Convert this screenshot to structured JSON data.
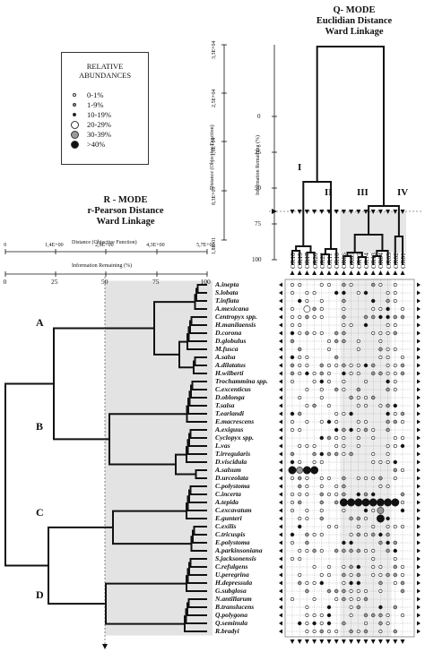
{
  "legend": {
    "title_line1": "RELATIVE",
    "title_line2": "ABUNDANCES",
    "items": [
      {
        "label": "0-1%",
        "fill": "#ffffff",
        "size": 4
      },
      {
        "label": "1-9%",
        "fill": "#999999",
        "size": 4
      },
      {
        "label": "10-19%",
        "fill": "#111111",
        "size": 4
      },
      {
        "label": "20-29%",
        "fill": "#ffffff",
        "size": 9
      },
      {
        "label": "30-39%",
        "fill": "#999999",
        "size": 9
      },
      {
        "label": ">40%",
        "fill": "#111111",
        "size": 9
      }
    ]
  },
  "qmode": {
    "title": "Q- MODE",
    "subtitle1": "Euclidian Distance",
    "subtitle2": "Ward Linkage",
    "distance_axis_label": "Distance (Objective Function)",
    "distance_ticks": [
      "1,8E-01",
      "8,3E+03",
      "1,6E+04",
      "2,5E+04",
      "3,3E+04"
    ],
    "info_axis_label": "Information Remaining (%)",
    "info_ticks": [
      "100",
      "75",
      "50",
      "25",
      "0"
    ],
    "groups": [
      "I",
      "II",
      "III",
      "IV"
    ],
    "stations": [
      "OR18",
      "OR19",
      "OR17",
      "OR20",
      "OR22",
      "OR11",
      "OR10",
      "OR06",
      "OR05",
      "OR15",
      "OR14",
      "OR13",
      "OR04",
      "OR03",
      "OR02",
      "OR01"
    ]
  },
  "rmode": {
    "title": "R - MODE",
    "subtitle1": "r-Pearson Distance",
    "subtitle2": "Ward Linkage",
    "distance_axis_label": "Distance (Objective Function)",
    "distance_ticks": [
      "0",
      "1,4E+00",
      "2,9E+00",
      "4,3E+00",
      "5,7E+00"
    ],
    "info_axis_label": "Information Remaining (%)",
    "info_ticks": [
      "0",
      "25",
      "50",
      "75",
      "100"
    ],
    "groups": [
      "A",
      "B",
      "C",
      "D"
    ]
  },
  "species": [
    "A.inepta",
    "S.lobata",
    "T.inflata",
    "A.mexicana",
    "Centropyx spp.",
    "H.manilaensis",
    "D.corona",
    "D.globulus",
    "M.fusca",
    "A.salsa",
    "A.dilatatus",
    "H.wilberti",
    "Trochammina spp.",
    "C.excenticus",
    "D.oblonga",
    "T.salsa",
    "T.earlandi",
    "E.macrescens",
    "A.exiguus",
    "Cyclopyx spp.",
    "L.vas",
    "T.irregularis",
    "D.viscidula",
    "A.salsum",
    "D.urceolata",
    "C.polystoma",
    "C.incerta",
    "A.tepida",
    "C.excavatum",
    "E.gunteri",
    "C.exilis",
    "C.tricuspis",
    "E.polystoma",
    "A.parkinsoniana",
    "S.jacksonensis",
    "C.refulgens",
    "U.peregrina",
    "H.depressula",
    "G.subglosa",
    "N.antillarum",
    "B.translucens",
    "Q.polygona",
    "Q.seminula",
    "R.bradyi"
  ]
}
